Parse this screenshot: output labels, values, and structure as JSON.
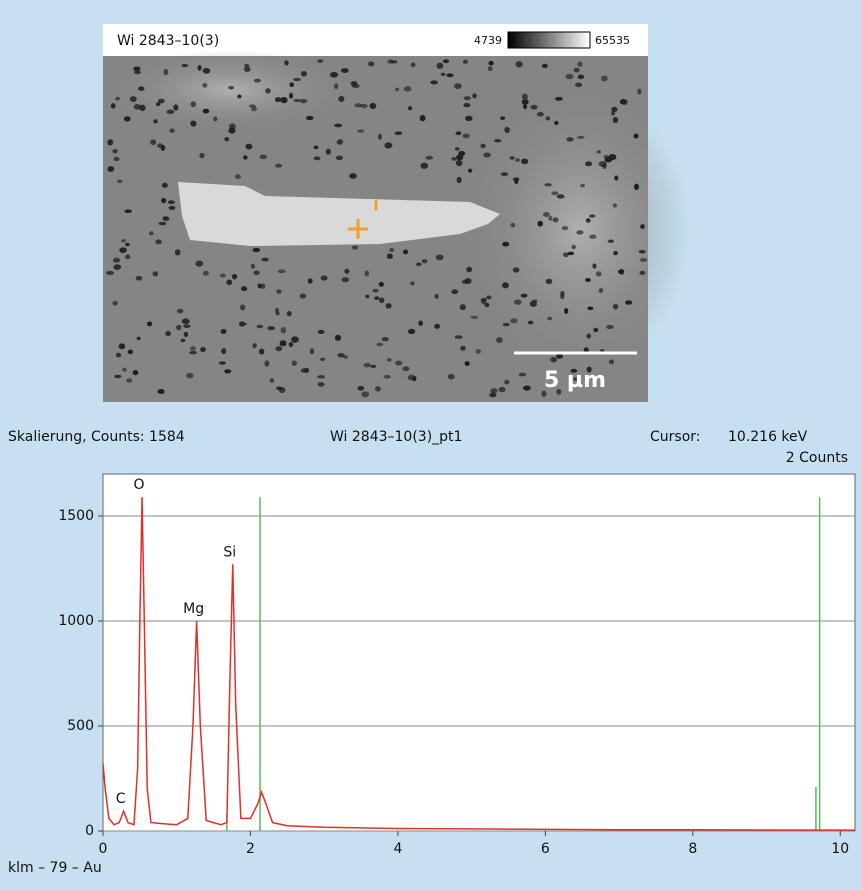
{
  "image": {
    "title": "Wi 2843–10(3)",
    "scale_min": "4739",
    "scale_max": "65535",
    "scale_bar": "5 µm"
  },
  "spectrum_header": {
    "scaling": "Skalierung, Counts: 1584",
    "name": "Wi 2843–10(3)_pt1",
    "cursor_label": "Cursor:",
    "cursor_value": "10.216 keV",
    "cursor_counts": "2 Counts"
  },
  "chart_data": {
    "type": "line",
    "x": [
      0,
      0.03,
      0.08,
      0.15,
      0.22,
      0.28,
      0.34,
      0.42,
      0.47,
      0.5,
      0.53,
      0.56,
      0.6,
      0.65,
      0.8,
      1.0,
      1.15,
      1.22,
      1.27,
      1.32,
      1.4,
      1.6,
      1.68,
      1.72,
      1.76,
      1.8,
      1.87,
      2.0,
      2.1,
      2.15,
      2.2,
      2.3,
      2.5,
      3.0,
      4.0,
      5.0,
      6.0,
      7.0,
      8.0,
      9.0,
      10.0,
      10.2
    ],
    "series": [
      {
        "color": "#e0302a",
        "values": [
          320,
          200,
          60,
          30,
          40,
          95,
          40,
          30,
          300,
          1000,
          1590,
          1000,
          200,
          40,
          35,
          30,
          60,
          500,
          1000,
          500,
          50,
          30,
          40,
          700,
          1270,
          600,
          60,
          60,
          130,
          185,
          140,
          40,
          25,
          18,
          12,
          10,
          8,
          6,
          6,
          5,
          4,
          4
        ]
      }
    ],
    "markers": {
      "color": "#5cb85c",
      "x": [
        1.68,
        2.13,
        9.67,
        9.72
      ],
      "values": [
        80,
        1590,
        210,
        1590
      ]
    },
    "annotations": [
      {
        "text": "C",
        "x": 0.28,
        "y": 95
      },
      {
        "text": "O",
        "x": 0.53,
        "y": 1590
      },
      {
        "text": "Mg",
        "x": 1.27,
        "y": 1000
      },
      {
        "text": "Si",
        "x": 1.76,
        "y": 1270
      }
    ],
    "xlim": [
      0,
      10.2
    ],
    "ylim": [
      0,
      1700
    ],
    "xticks": [
      0,
      2,
      4,
      6,
      8,
      10
    ],
    "yticks": [
      0,
      500,
      1000,
      1500
    ],
    "grid": true,
    "footnote": "klm – 79 – Au"
  }
}
